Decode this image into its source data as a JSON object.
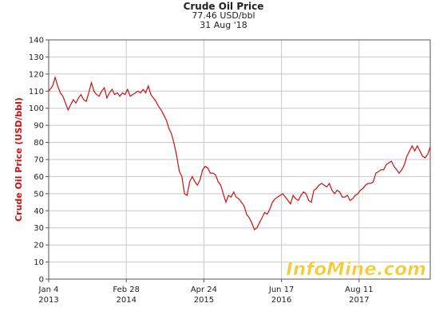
{
  "header": {
    "title": "Crude Oil Price",
    "price": "77.46 USD/bbl",
    "date": "31 Aug '18"
  },
  "watermark": "InfoMine.com",
  "colors": {
    "line": "#cc1111",
    "grid": "#c8c8c8",
    "axis": "#555555",
    "watermark": "#f2cc33"
  },
  "chart_data": {
    "type": "line",
    "title": "Crude Oil Price",
    "ylabel": "Crude Oil Price (USD/bbl)",
    "xlabel": "",
    "ylim": [
      0,
      140
    ],
    "xlim": [
      "2013-01-04",
      "2018-08-31"
    ],
    "grid": true,
    "yticks": [
      0,
      10,
      20,
      30,
      40,
      50,
      60,
      70,
      80,
      90,
      100,
      110,
      120,
      130,
      140
    ],
    "xticks": [
      {
        "date": "2013-01-04",
        "label": "Jan 4",
        "year": "2013"
      },
      {
        "date": "2014-02-28",
        "label": "Feb 28",
        "year": "2014"
      },
      {
        "date": "2015-04-24",
        "label": "Apr 24",
        "year": "2015"
      },
      {
        "date": "2016-06-17",
        "label": "Jun 17",
        "year": "2016"
      },
      {
        "date": "2017-08-11",
        "label": "Aug 11",
        "year": "2017"
      }
    ],
    "series": [
      {
        "x": [
          "2013-01-04",
          "2013-01-25",
          "2013-02-08",
          "2013-02-22",
          "2013-03-08",
          "2013-03-22",
          "2013-04-05",
          "2013-04-19",
          "2013-05-03",
          "2013-05-17",
          "2013-05-31",
          "2013-06-14",
          "2013-06-28",
          "2013-07-12",
          "2013-07-26",
          "2013-08-09",
          "2013-08-23",
          "2013-09-06",
          "2013-09-20",
          "2013-10-04",
          "2013-10-18",
          "2013-11-01",
          "2013-11-15",
          "2013-11-29",
          "2013-12-13",
          "2013-12-27",
          "2014-01-10",
          "2014-01-24",
          "2014-02-07",
          "2014-02-21",
          "2014-03-07",
          "2014-03-21",
          "2014-04-04",
          "2014-04-18",
          "2014-05-02",
          "2014-05-16",
          "2014-05-30",
          "2014-06-13",
          "2014-06-27",
          "2014-07-11",
          "2014-07-25",
          "2014-08-08",
          "2014-08-22",
          "2014-09-05",
          "2014-09-19",
          "2014-10-03",
          "2014-10-17",
          "2014-10-31",
          "2014-11-14",
          "2014-11-28",
          "2014-12-12",
          "2014-12-26",
          "2015-01-09",
          "2015-01-23",
          "2015-02-06",
          "2015-02-20",
          "2015-03-06",
          "2015-03-20",
          "2015-04-03",
          "2015-04-17",
          "2015-05-01",
          "2015-05-15",
          "2015-05-29",
          "2015-06-12",
          "2015-06-26",
          "2015-07-10",
          "2015-07-24",
          "2015-08-07",
          "2015-08-21",
          "2015-09-04",
          "2015-09-18",
          "2015-10-02",
          "2015-10-16",
          "2015-10-30",
          "2015-11-13",
          "2015-11-27",
          "2015-12-11",
          "2015-12-25",
          "2016-01-08",
          "2016-01-22",
          "2016-02-05",
          "2016-02-19",
          "2016-03-04",
          "2016-03-18",
          "2016-04-01",
          "2016-04-15",
          "2016-04-29",
          "2016-05-13",
          "2016-05-27",
          "2016-06-10",
          "2016-06-24",
          "2016-07-08",
          "2016-07-22",
          "2016-08-05",
          "2016-08-19",
          "2016-09-02",
          "2016-09-16",
          "2016-09-30",
          "2016-10-14",
          "2016-10-28",
          "2016-11-11",
          "2016-11-25",
          "2016-12-09",
          "2016-12-23",
          "2017-01-06",
          "2017-01-20",
          "2017-02-03",
          "2017-02-17",
          "2017-03-03",
          "2017-03-17",
          "2017-03-31",
          "2017-04-14",
          "2017-04-28",
          "2017-05-12",
          "2017-05-26",
          "2017-06-09",
          "2017-06-23",
          "2017-07-07",
          "2017-07-21",
          "2017-08-04",
          "2017-08-18",
          "2017-09-01",
          "2017-09-15",
          "2017-09-29",
          "2017-10-13",
          "2017-10-27",
          "2017-11-10",
          "2017-11-24",
          "2017-12-08",
          "2017-12-22",
          "2018-01-05",
          "2018-01-19",
          "2018-02-02",
          "2018-02-16",
          "2018-03-02",
          "2018-03-16",
          "2018-03-30",
          "2018-04-13",
          "2018-04-27",
          "2018-05-11",
          "2018-05-25",
          "2018-06-08",
          "2018-06-22",
          "2018-07-06",
          "2018-07-20",
          "2018-08-03",
          "2018-08-17",
          "2018-08-31"
        ],
        "values": [
          110,
          113,
          118,
          113,
          109,
          107,
          103,
          99,
          102,
          105,
          103,
          106,
          108,
          105,
          104,
          109,
          115,
          110,
          108,
          107,
          110,
          112,
          106,
          109,
          111,
          108,
          109,
          107,
          109,
          108,
          111,
          107,
          108,
          109,
          110,
          109,
          111,
          109,
          113,
          108,
          106,
          104,
          101,
          99,
          96,
          93,
          88,
          85,
          79,
          72,
          63,
          60,
          50,
          49,
          57,
          60,
          57,
          55,
          58,
          64,
          66,
          65,
          62,
          62,
          61,
          57,
          55,
          50,
          45,
          49,
          48,
          51,
          48,
          47,
          45,
          43,
          38,
          36,
          33,
          29,
          30,
          33,
          36,
          39,
          38,
          41,
          45,
          47,
          48,
          49,
          50,
          48,
          46,
          44,
          49,
          47,
          46,
          49,
          51,
          50,
          46,
          45,
          52,
          53,
          55,
          56,
          55,
          54,
          56,
          52,
          50,
          52,
          51,
          48,
          48,
          49,
          46,
          47,
          49,
          50,
          52,
          53,
          55,
          56,
          56,
          57,
          62,
          63,
          64,
          64,
          67,
          68,
          69,
          66,
          64,
          62,
          64,
          67,
          72,
          75,
          78,
          75,
          78,
          75,
          72,
          71,
          73,
          77.46
        ]
      }
    ]
  }
}
